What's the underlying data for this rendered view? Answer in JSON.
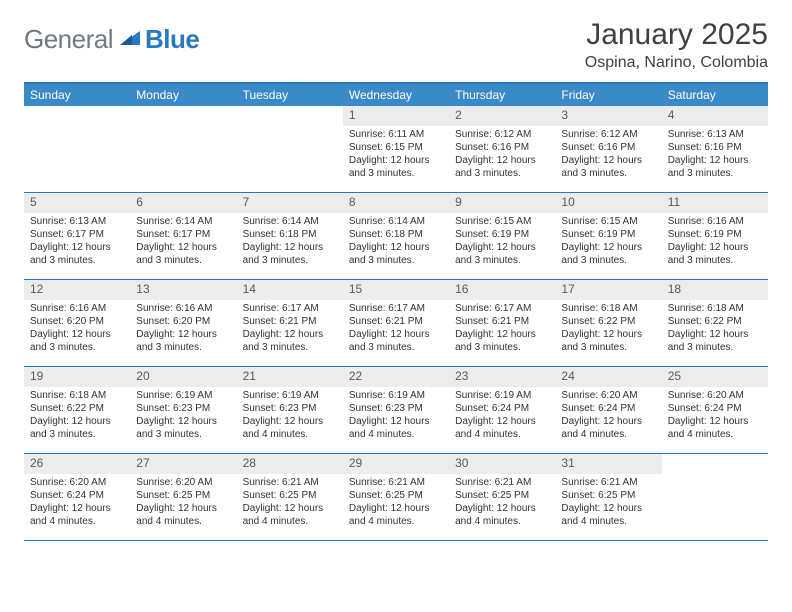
{
  "brand": {
    "gray": "General",
    "blue": "Blue"
  },
  "title": "January 2025",
  "location": "Ospina, Narino, Colombia",
  "colors": {
    "accent": "#3a8ac8",
    "rule": "#2b78c2",
    "dayHeader": "#ececec"
  },
  "weekdays": [
    "Sunday",
    "Monday",
    "Tuesday",
    "Wednesday",
    "Thursday",
    "Friday",
    "Saturday"
  ],
  "weeks": [
    [
      {
        "n": "",
        "sr": "",
        "ss": "",
        "dl": ""
      },
      {
        "n": "",
        "sr": "",
        "ss": "",
        "dl": ""
      },
      {
        "n": "",
        "sr": "",
        "ss": "",
        "dl": ""
      },
      {
        "n": "1",
        "sr": "Sunrise: 6:11 AM",
        "ss": "Sunset: 6:15 PM",
        "dl": "Daylight: 12 hours and 3 minutes."
      },
      {
        "n": "2",
        "sr": "Sunrise: 6:12 AM",
        "ss": "Sunset: 6:16 PM",
        "dl": "Daylight: 12 hours and 3 minutes."
      },
      {
        "n": "3",
        "sr": "Sunrise: 6:12 AM",
        "ss": "Sunset: 6:16 PM",
        "dl": "Daylight: 12 hours and 3 minutes."
      },
      {
        "n": "4",
        "sr": "Sunrise: 6:13 AM",
        "ss": "Sunset: 6:16 PM",
        "dl": "Daylight: 12 hours and 3 minutes."
      }
    ],
    [
      {
        "n": "5",
        "sr": "Sunrise: 6:13 AM",
        "ss": "Sunset: 6:17 PM",
        "dl": "Daylight: 12 hours and 3 minutes."
      },
      {
        "n": "6",
        "sr": "Sunrise: 6:14 AM",
        "ss": "Sunset: 6:17 PM",
        "dl": "Daylight: 12 hours and 3 minutes."
      },
      {
        "n": "7",
        "sr": "Sunrise: 6:14 AM",
        "ss": "Sunset: 6:18 PM",
        "dl": "Daylight: 12 hours and 3 minutes."
      },
      {
        "n": "8",
        "sr": "Sunrise: 6:14 AM",
        "ss": "Sunset: 6:18 PM",
        "dl": "Daylight: 12 hours and 3 minutes."
      },
      {
        "n": "9",
        "sr": "Sunrise: 6:15 AM",
        "ss": "Sunset: 6:19 PM",
        "dl": "Daylight: 12 hours and 3 minutes."
      },
      {
        "n": "10",
        "sr": "Sunrise: 6:15 AM",
        "ss": "Sunset: 6:19 PM",
        "dl": "Daylight: 12 hours and 3 minutes."
      },
      {
        "n": "11",
        "sr": "Sunrise: 6:16 AM",
        "ss": "Sunset: 6:19 PM",
        "dl": "Daylight: 12 hours and 3 minutes."
      }
    ],
    [
      {
        "n": "12",
        "sr": "Sunrise: 6:16 AM",
        "ss": "Sunset: 6:20 PM",
        "dl": "Daylight: 12 hours and 3 minutes."
      },
      {
        "n": "13",
        "sr": "Sunrise: 6:16 AM",
        "ss": "Sunset: 6:20 PM",
        "dl": "Daylight: 12 hours and 3 minutes."
      },
      {
        "n": "14",
        "sr": "Sunrise: 6:17 AM",
        "ss": "Sunset: 6:21 PM",
        "dl": "Daylight: 12 hours and 3 minutes."
      },
      {
        "n": "15",
        "sr": "Sunrise: 6:17 AM",
        "ss": "Sunset: 6:21 PM",
        "dl": "Daylight: 12 hours and 3 minutes."
      },
      {
        "n": "16",
        "sr": "Sunrise: 6:17 AM",
        "ss": "Sunset: 6:21 PM",
        "dl": "Daylight: 12 hours and 3 minutes."
      },
      {
        "n": "17",
        "sr": "Sunrise: 6:18 AM",
        "ss": "Sunset: 6:22 PM",
        "dl": "Daylight: 12 hours and 3 minutes."
      },
      {
        "n": "18",
        "sr": "Sunrise: 6:18 AM",
        "ss": "Sunset: 6:22 PM",
        "dl": "Daylight: 12 hours and 3 minutes."
      }
    ],
    [
      {
        "n": "19",
        "sr": "Sunrise: 6:18 AM",
        "ss": "Sunset: 6:22 PM",
        "dl": "Daylight: 12 hours and 3 minutes."
      },
      {
        "n": "20",
        "sr": "Sunrise: 6:19 AM",
        "ss": "Sunset: 6:23 PM",
        "dl": "Daylight: 12 hours and 3 minutes."
      },
      {
        "n": "21",
        "sr": "Sunrise: 6:19 AM",
        "ss": "Sunset: 6:23 PM",
        "dl": "Daylight: 12 hours and 4 minutes."
      },
      {
        "n": "22",
        "sr": "Sunrise: 6:19 AM",
        "ss": "Sunset: 6:23 PM",
        "dl": "Daylight: 12 hours and 4 minutes."
      },
      {
        "n": "23",
        "sr": "Sunrise: 6:19 AM",
        "ss": "Sunset: 6:24 PM",
        "dl": "Daylight: 12 hours and 4 minutes."
      },
      {
        "n": "24",
        "sr": "Sunrise: 6:20 AM",
        "ss": "Sunset: 6:24 PM",
        "dl": "Daylight: 12 hours and 4 minutes."
      },
      {
        "n": "25",
        "sr": "Sunrise: 6:20 AM",
        "ss": "Sunset: 6:24 PM",
        "dl": "Daylight: 12 hours and 4 minutes."
      }
    ],
    [
      {
        "n": "26",
        "sr": "Sunrise: 6:20 AM",
        "ss": "Sunset: 6:24 PM",
        "dl": "Daylight: 12 hours and 4 minutes."
      },
      {
        "n": "27",
        "sr": "Sunrise: 6:20 AM",
        "ss": "Sunset: 6:25 PM",
        "dl": "Daylight: 12 hours and 4 minutes."
      },
      {
        "n": "28",
        "sr": "Sunrise: 6:21 AM",
        "ss": "Sunset: 6:25 PM",
        "dl": "Daylight: 12 hours and 4 minutes."
      },
      {
        "n": "29",
        "sr": "Sunrise: 6:21 AM",
        "ss": "Sunset: 6:25 PM",
        "dl": "Daylight: 12 hours and 4 minutes."
      },
      {
        "n": "30",
        "sr": "Sunrise: 6:21 AM",
        "ss": "Sunset: 6:25 PM",
        "dl": "Daylight: 12 hours and 4 minutes."
      },
      {
        "n": "31",
        "sr": "Sunrise: 6:21 AM",
        "ss": "Sunset: 6:25 PM",
        "dl": "Daylight: 12 hours and 4 minutes."
      },
      {
        "n": "",
        "sr": "",
        "ss": "",
        "dl": ""
      }
    ]
  ]
}
